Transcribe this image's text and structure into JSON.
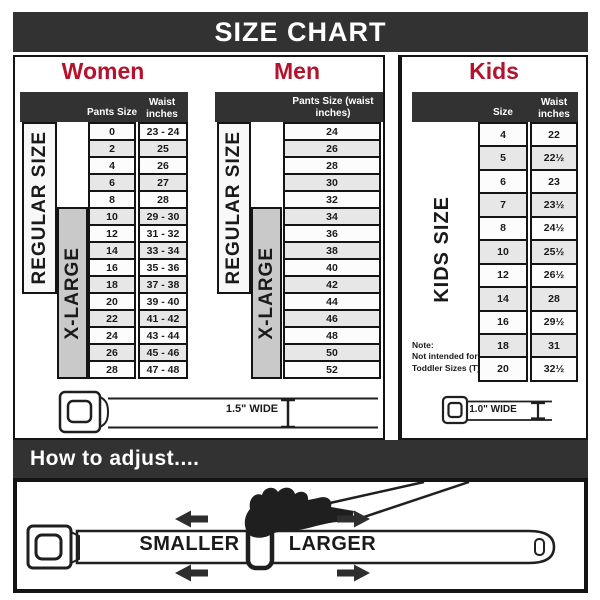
{
  "title": "SIZE CHART",
  "colors": {
    "accent": "#b5122d",
    "dark": "#323232",
    "xlarge_bg": "#c9c9c9",
    "row_alt": "#e7e7e7"
  },
  "sections": {
    "women": {
      "heading": "Women",
      "col1_header": "Pants Size",
      "col2_header": "Waist inches",
      "side_labels": {
        "regular": "REGULAR SIZE",
        "xlarge": "X-LARGE"
      },
      "rows": [
        {
          "size": "0",
          "waist": "23 - 24"
        },
        {
          "size": "2",
          "waist": "25"
        },
        {
          "size": "4",
          "waist": "26"
        },
        {
          "size": "6",
          "waist": "27"
        },
        {
          "size": "8",
          "waist": "28"
        },
        {
          "size": "10",
          "waist": "29 - 30"
        },
        {
          "size": "12",
          "waist": "31 - 32"
        },
        {
          "size": "14",
          "waist": "33 - 34"
        },
        {
          "size": "16",
          "waist": "35 - 36"
        },
        {
          "size": "18",
          "waist": "37 - 38"
        },
        {
          "size": "20",
          "waist": "39 - 40"
        },
        {
          "size": "22",
          "waist": "41 - 42"
        },
        {
          "size": "24",
          "waist": "43 - 44"
        },
        {
          "size": "26",
          "waist": "45 - 46"
        },
        {
          "size": "28",
          "waist": "47 - 48"
        }
      ]
    },
    "men": {
      "heading": "Men",
      "col_header": "Pants Size (waist inches)",
      "side_labels": {
        "regular": "REGULAR SIZE",
        "xlarge": "X-LARGE"
      },
      "rows": [
        "24",
        "26",
        "28",
        "30",
        "32",
        "34",
        "36",
        "38",
        "40",
        "42",
        "44",
        "46",
        "48",
        "50",
        "52"
      ]
    },
    "kids": {
      "heading": "Kids",
      "col1_header": "Size",
      "col2_header": "Waist inches",
      "side_label": "KIDS SIZE",
      "note_lines": [
        "Note:",
        "Not intended for",
        "Toddler Sizes (T)"
      ],
      "rows": [
        {
          "size": "4",
          "waist": "22"
        },
        {
          "size": "5",
          "waist": "22½"
        },
        {
          "size": "6",
          "waist": "23"
        },
        {
          "size": "7",
          "waist": "23½"
        },
        {
          "size": "8",
          "waist": "24½"
        },
        {
          "size": "10",
          "waist": "25½"
        },
        {
          "size": "12",
          "waist": "26½"
        },
        {
          "size": "14",
          "waist": "28"
        },
        {
          "size": "16",
          "waist": "29½"
        },
        {
          "size": "18",
          "waist": "31"
        },
        {
          "size": "20",
          "waist": "32½"
        }
      ]
    }
  },
  "belts": {
    "adult_width_label": "1.5\" WIDE",
    "kids_width_label": "1.0\" WIDE"
  },
  "how_to_adjust": {
    "heading": "How to adjust....",
    "smaller_label": "SMALLER",
    "larger_label": "LARGER"
  }
}
